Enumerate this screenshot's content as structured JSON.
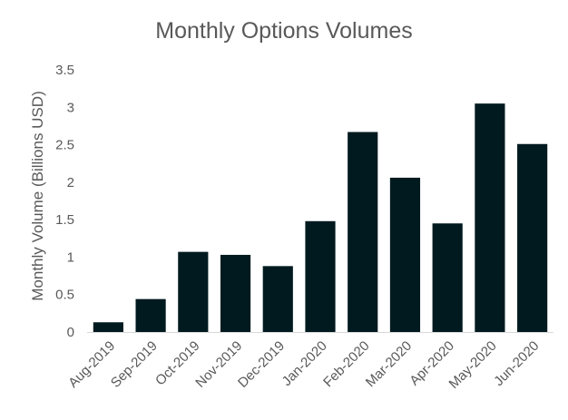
{
  "chart_data": {
    "type": "bar",
    "title": "Monthly Options Volumes",
    "xlabel": "",
    "ylabel": "Monthly Volume (Billions USD)",
    "categories": [
      "Aug-2019",
      "Sep-2019",
      "Oct-2019",
      "Nov-2019",
      "Dec-2019",
      "Jan-2020",
      "Feb-2020",
      "Mar-2020",
      "Apr-2020",
      "May-2020",
      "Jun-2020"
    ],
    "values": [
      0.13,
      0.44,
      1.07,
      1.03,
      0.88,
      1.48,
      2.67,
      2.06,
      1.45,
      3.05,
      2.51
    ],
    "ylim": [
      0,
      3.5
    ],
    "yticks": [
      "0",
      "0.5",
      "1",
      "1.5",
      "2",
      "2.5",
      "3",
      "3.5"
    ],
    "grid": false,
    "legend": "none",
    "bar_color": "#001a1f"
  }
}
